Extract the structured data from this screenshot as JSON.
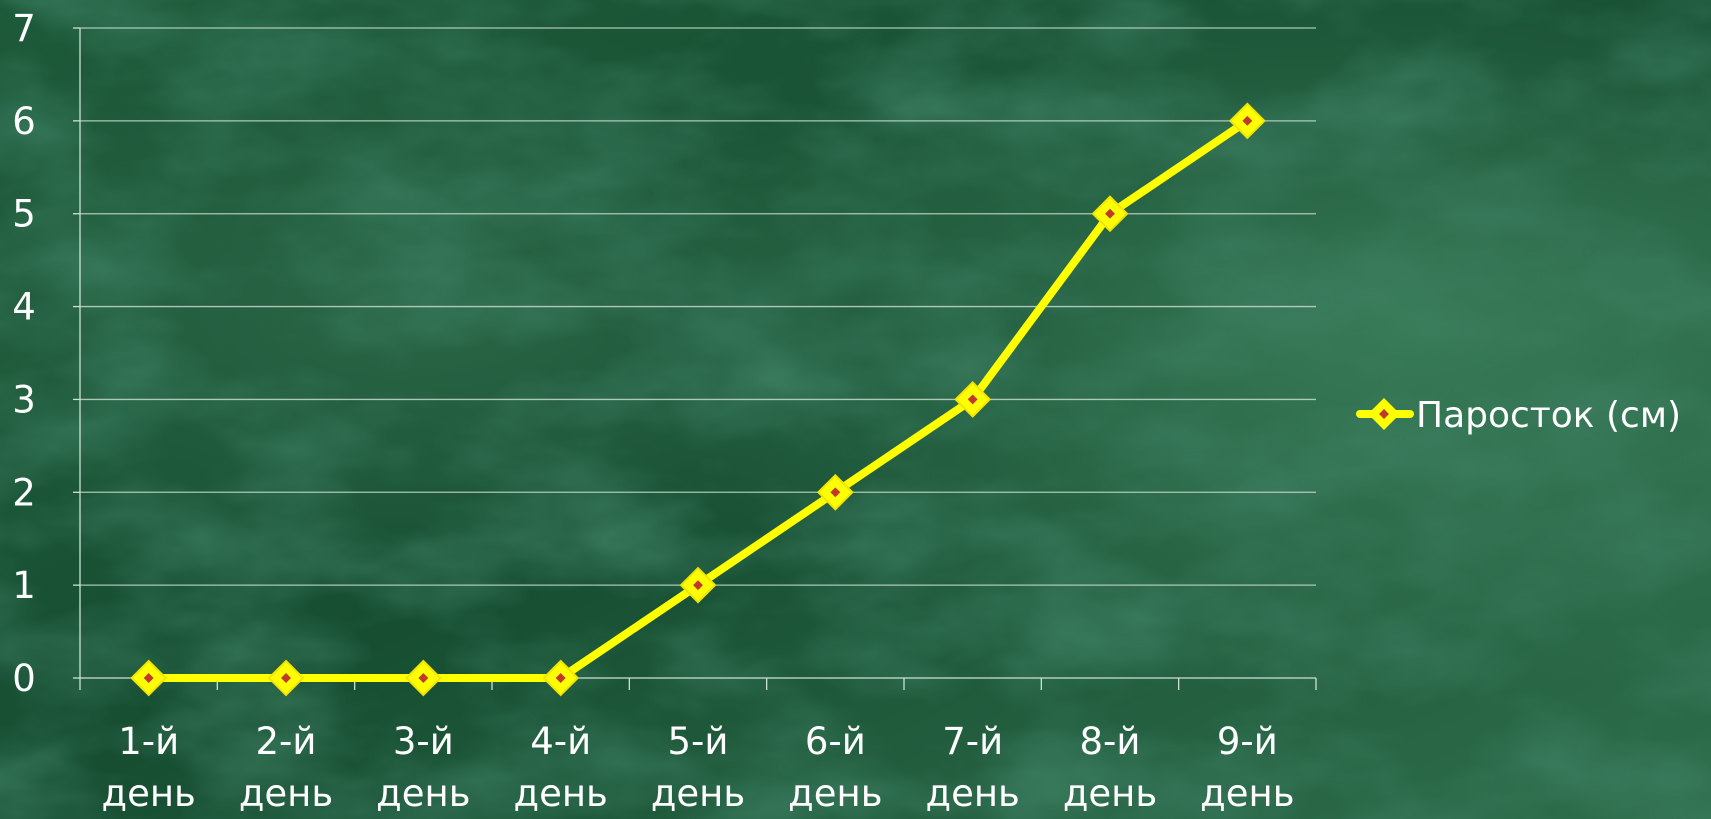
{
  "chart_data": {
    "type": "line",
    "categories": [
      "1-й день",
      "2-й день",
      "3-й день",
      "4-й день",
      "5-й день",
      "6-й день",
      "7-й день",
      "8-й день",
      "9-й день"
    ],
    "category_lines": [
      [
        "1-й",
        "день"
      ],
      [
        "2-й",
        "день"
      ],
      [
        "3-й",
        "день"
      ],
      [
        "4-й",
        "день"
      ],
      [
        "5-й",
        "день"
      ],
      [
        "6-й",
        "день"
      ],
      [
        "7-й",
        "день"
      ],
      [
        "8-й",
        "день"
      ],
      [
        "9-й",
        "день"
      ]
    ],
    "series": [
      {
        "name": "Паросток (см)",
        "values": [
          0,
          0,
          0,
          0,
          1,
          2,
          3,
          5,
          6
        ],
        "color": "#ffff00",
        "marker": "diamond",
        "marker_center_color": "#c0392b"
      }
    ],
    "ylim": [
      0,
      7
    ],
    "yticks": [
      "0",
      "1",
      "2",
      "3",
      "4",
      "5",
      "6",
      "7"
    ],
    "grid": true,
    "legend_position": "right",
    "title": "",
    "xlabel": "",
    "ylabel": "",
    "colors": {
      "background_dark": "#0c3a22",
      "background_light": "#3f8a62",
      "text": "#ffffff",
      "gridline": "#cfe0d6"
    }
  }
}
